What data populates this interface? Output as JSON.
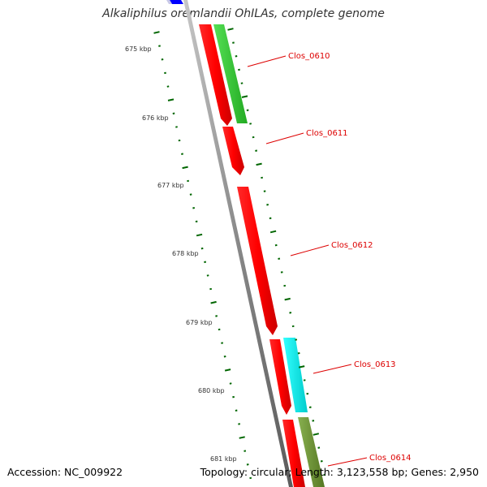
{
  "title": "Alkaliphilus oremlandii OhILAs, complete genome",
  "footer": {
    "accession": "Accession: NC_009922",
    "summary": "Topology: circular; Length: 3,123,558 bp; Genes: 2,950"
  },
  "scale_labels": [
    "675 kbp",
    "676 kbp",
    "677 kbp",
    "678 kbp",
    "679 kbp",
    "680 kbp",
    "681 kbp"
  ],
  "genes": [
    {
      "name": "Clos_0610",
      "color": "#33cc33"
    },
    {
      "name": "Clos_0611",
      "color": "#ff0000"
    },
    {
      "name": "Clos_0612",
      "color": "#ff0000"
    },
    {
      "name": "Clos_0613",
      "color": "#00ffff"
    },
    {
      "name": "Clos_0614",
      "color": "#669933"
    }
  ],
  "colors": {
    "backbone": "#8c8c8c",
    "tick": "#006600",
    "label_red": "#dd0000",
    "blue_feature": "#0000ff"
  }
}
